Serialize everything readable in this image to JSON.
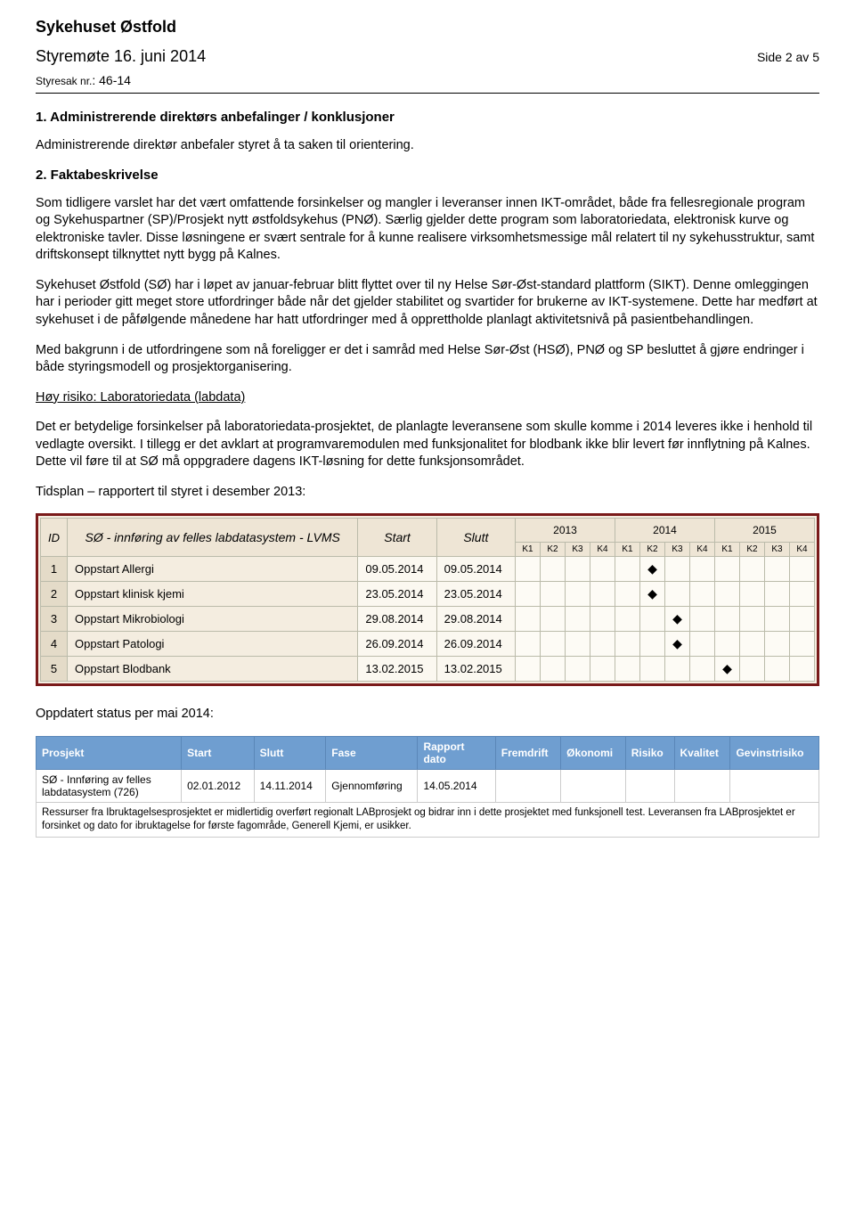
{
  "header": {
    "org": "Sykehuset Østfold",
    "meeting": "Styremøte 16. juni 2014",
    "page": "Side 2 av 5",
    "case_label": "Styresak nr.",
    "case_no": ": 46-14"
  },
  "section1": {
    "heading": "1. Administrerende direktørs anbefalinger / konklusjoner",
    "p1": "Administrerende direktør anbefaler styret å ta saken til orientering."
  },
  "section2": {
    "heading": "2. Faktabeskrivelse",
    "p1": "Som tidligere varslet har det vært omfattende forsinkelser og mangler i leveranser innen IKT-området, både fra fellesregionale program og Sykehuspartner (SP)/Prosjekt nytt østfoldsykehus (PNØ). Særlig gjelder dette program som laboratoriedata, elektronisk kurve og elektroniske tavler. Disse løsningene er svært sentrale for å kunne realisere virksomhetsmessige mål relatert til ny sykehusstruktur, samt driftskonsept tilknyttet nytt bygg på Kalnes.",
    "p2": "Sykehuset Østfold (SØ) har i løpet av januar-februar blitt flyttet over til ny Helse Sør-Øst-standard plattform (SIKT). Denne omleggingen har i perioder gitt meget store utfordringer både når det gjelder stabilitet og svartider for brukerne av IKT-systemene. Dette har medført at sykehuset i de påfølgende månedene har hatt utfordringer med å opprettholde planlagt aktivitetsnivå på pasientbehandlingen.",
    "p3": "Med bakgrunn i de utfordringene som nå foreligger er det i samråd med Helse Sør-Øst (HSØ), PNØ og SP besluttet å gjøre endringer i både styringsmodell og prosjektorganisering.",
    "sub_heading": "Høy risiko: Laboratoriedata (labdata)",
    "p4": "Det er betydelige forsinkelser på laboratoriedata-prosjektet, de planlagte leveransene som skulle komme i 2014 leveres ikke i henhold til vedlagte oversikt. I tillegg er det avklart at programvaremodulen med funksjonalitet for blodbank ikke blir levert før innflytning på Kalnes. Dette vil føre til at SØ må oppgradere dagens IKT-løsning for dette funksjonsområdet.",
    "plan_label": "Tidsplan – rapportert til styret i desember 2013:"
  },
  "gantt": {
    "title": "SØ - innføring av felles labdatasystem - LVMS",
    "id_header": "ID",
    "start_header": "Start",
    "end_header": "Slutt",
    "years": [
      "2013",
      "2014",
      "2015"
    ],
    "quarters": [
      "K1",
      "K2",
      "K3",
      "K4"
    ],
    "rows": [
      {
        "id": "1",
        "label": "Oppstart Allergi",
        "start": "09.05.2014",
        "end": "09.05.2014",
        "marker_col": 5
      },
      {
        "id": "2",
        "label": "Oppstart klinisk kjemi",
        "start": "23.05.2014",
        "end": "23.05.2014",
        "marker_col": 5
      },
      {
        "id": "3",
        "label": "Oppstart Mikrobiologi",
        "start": "29.08.2014",
        "end": "29.08.2014",
        "marker_col": 6
      },
      {
        "id": "4",
        "label": "Oppstart Patologi",
        "start": "26.09.2014",
        "end": "26.09.2014",
        "marker_col": 6
      },
      {
        "id": "5",
        "label": "Oppstart Blodbank",
        "start": "13.02.2015",
        "end": "13.02.2015",
        "marker_col": 8
      }
    ]
  },
  "status_label": "Oppdatert status per mai 2014:",
  "status": {
    "headers": [
      "Prosjekt",
      "Start",
      "Slutt",
      "Fase",
      "Rapport dato",
      "Fremdrift",
      "Økonomi",
      "Risiko",
      "Kvalitet",
      "Gevinstrisiko"
    ],
    "row": {
      "prosjekt": "SØ - Innføring av felles labdatasystem (726)",
      "start": "02.01.2012",
      "slutt": "14.11.2014",
      "fase": "Gjennomføring",
      "rapport": "14.05.2014"
    },
    "note": "Ressurser fra Ibruktagelsesprosjektet er midlertidig overført regionalt LABprosjekt og bidrar inn i dette prosjektet med funksjonell test. Leveransen fra LABprosjektet er forsinket og dato for ibruktagelse for første fagområde, Generell Kjemi, er usikker."
  }
}
